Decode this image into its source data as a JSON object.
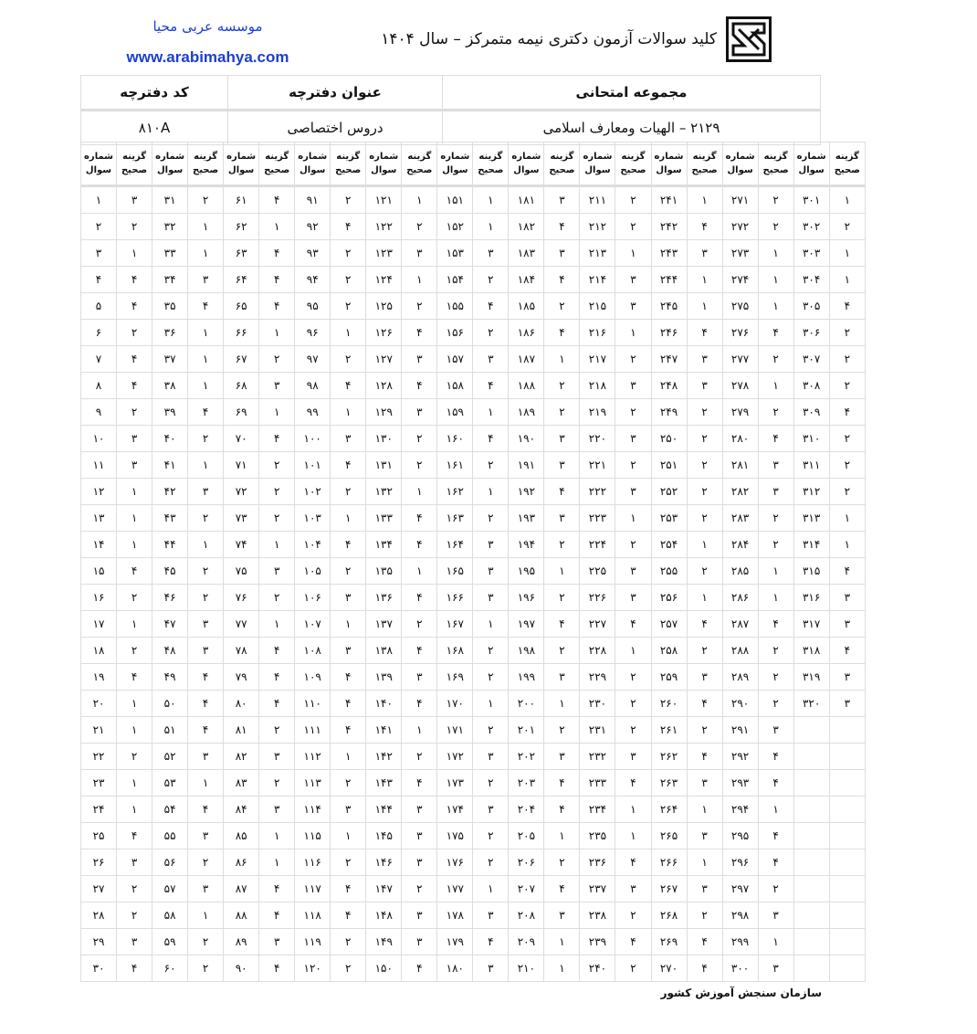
{
  "header": {
    "title": "کلید سوالات آزمون دکتری نیمه متمرکز – سال ۱۴۰۴",
    "institute": "موسسه عربی محیا",
    "website": "www.arabimahya.com",
    "logo_icon": "sanjesh-logo"
  },
  "info": {
    "headers": [
      "مجموعه امتحانی",
      "عنوان دفترچه",
      "کد دفترچه"
    ],
    "values": [
      "۲۱۲۹ – الهیات ومعارف اسلامی",
      "دروس اختصاصی",
      "۸۱۰A"
    ]
  },
  "key": {
    "col_question": "شماره سوال",
    "col_answer": "گزینه صحیح",
    "groups": [
      {
        "questions": [
          "۱",
          "۲",
          "۳",
          "۴",
          "۵",
          "۶",
          "۷",
          "۸",
          "۹",
          "۱۰",
          "۱۱",
          "۱۲",
          "۱۳",
          "۱۴",
          "۱۵",
          "۱۶",
          "۱۷",
          "۱۸",
          "۱۹",
          "۲۰",
          "۲۱",
          "۲۲",
          "۲۳",
          "۲۴",
          "۲۵",
          "۲۶",
          "۲۷",
          "۲۸",
          "۲۹",
          "۳۰"
        ],
        "answers": [
          "۳",
          "۲",
          "۱",
          "۴",
          "۴",
          "۲",
          "۴",
          "۴",
          "۲",
          "۳",
          "۳",
          "۱",
          "۱",
          "۱",
          "۴",
          "۲",
          "۱",
          "۲",
          "۴",
          "۱",
          "۱",
          "۲",
          "۱",
          "۱",
          "۴",
          "۳",
          "۲",
          "۲",
          "۳",
          "۴"
        ]
      },
      {
        "questions": [
          "۳۱",
          "۳۲",
          "۳۳",
          "۳۴",
          "۳۵",
          "۳۶",
          "۳۷",
          "۳۸",
          "۳۹",
          "۴۰",
          "۴۱",
          "۴۲",
          "۴۳",
          "۴۴",
          "۴۵",
          "۴۶",
          "۴۷",
          "۴۸",
          "۴۹",
          "۵۰",
          "۵۱",
          "۵۲",
          "۵۳",
          "۵۴",
          "۵۵",
          "۵۶",
          "۵۷",
          "۵۸",
          "۵۹",
          "۶۰"
        ],
        "answers": [
          "۲",
          "۱",
          "۱",
          "۳",
          "۴",
          "۱",
          "۱",
          "۱",
          "۴",
          "۲",
          "۱",
          "۳",
          "۲",
          "۱",
          "۲",
          "۲",
          "۳",
          "۳",
          "۴",
          "۴",
          "۴",
          "۳",
          "۱",
          "۴",
          "۳",
          "۲",
          "۳",
          "۱",
          "۲",
          "۲"
        ]
      },
      {
        "questions": [
          "۶۱",
          "۶۲",
          "۶۳",
          "۶۴",
          "۶۵",
          "۶۶",
          "۶۷",
          "۶۸",
          "۶۹",
          "۷۰",
          "۷۱",
          "۷۲",
          "۷۳",
          "۷۴",
          "۷۵",
          "۷۶",
          "۷۷",
          "۷۸",
          "۷۹",
          "۸۰",
          "۸۱",
          "۸۲",
          "۸۳",
          "۸۴",
          "۸۵",
          "۸۶",
          "۸۷",
          "۸۸",
          "۸۹",
          "۹۰"
        ],
        "answers": [
          "۴",
          "۱",
          "۴",
          "۴",
          "۴",
          "۱",
          "۲",
          "۳",
          "۱",
          "۴",
          "۲",
          "۲",
          "۲",
          "۱",
          "۳",
          "۲",
          "۱",
          "۴",
          "۴",
          "۴",
          "۲",
          "۳",
          "۲",
          "۳",
          "۱",
          "۱",
          "۴",
          "۴",
          "۳",
          "۴"
        ]
      },
      {
        "questions": [
          "۹۱",
          "۹۲",
          "۹۳",
          "۹۴",
          "۹۵",
          "۹۶",
          "۹۷",
          "۹۸",
          "۹۹",
          "۱۰۰",
          "۱۰۱",
          "۱۰۲",
          "۱۰۳",
          "۱۰۴",
          "۱۰۵",
          "۱۰۶",
          "۱۰۷",
          "۱۰۸",
          "۱۰۹",
          "۱۱۰",
          "۱۱۱",
          "۱۱۲",
          "۱۱۳",
          "۱۱۴",
          "۱۱۵",
          "۱۱۶",
          "۱۱۷",
          "۱۱۸",
          "۱۱۹",
          "۱۲۰"
        ],
        "answers": [
          "۲",
          "۴",
          "۲",
          "۲",
          "۲",
          "۱",
          "۲",
          "۴",
          "۱",
          "۳",
          "۴",
          "۲",
          "۱",
          "۴",
          "۲",
          "۳",
          "۱",
          "۳",
          "۴",
          "۴",
          "۴",
          "۱",
          "۲",
          "۳",
          "۱",
          "۲",
          "۴",
          "۴",
          "۲",
          "۲"
        ]
      },
      {
        "questions": [
          "۱۲۱",
          "۱۲۲",
          "۱۲۳",
          "۱۲۴",
          "۱۲۵",
          "۱۲۶",
          "۱۲۷",
          "۱۲۸",
          "۱۲۹",
          "۱۳۰",
          "۱۳۱",
          "۱۳۲",
          "۱۳۳",
          "۱۳۴",
          "۱۳۵",
          "۱۳۶",
          "۱۳۷",
          "۱۳۸",
          "۱۳۹",
          "۱۴۰",
          "۱۴۱",
          "۱۴۲",
          "۱۴۳",
          "۱۴۴",
          "۱۴۵",
          "۱۴۶",
          "۱۴۷",
          "۱۴۸",
          "۱۴۹",
          "۱۵۰"
        ],
        "answers": [
          "۱",
          "۲",
          "۳",
          "۱",
          "۲",
          "۴",
          "۳",
          "۴",
          "۳",
          "۲",
          "۲",
          "۱",
          "۴",
          "۴",
          "۱",
          "۴",
          "۲",
          "۴",
          "۳",
          "۴",
          "۱",
          "۲",
          "۴",
          "۳",
          "۳",
          "۳",
          "۲",
          "۳",
          "۳",
          "۴"
        ]
      },
      {
        "questions": [
          "۱۵۱",
          "۱۵۲",
          "۱۵۳",
          "۱۵۴",
          "۱۵۵",
          "۱۵۶",
          "۱۵۷",
          "۱۵۸",
          "۱۵۹",
          "۱۶۰",
          "۱۶۱",
          "۱۶۲",
          "۱۶۳",
          "۱۶۴",
          "۱۶۵",
          "۱۶۶",
          "۱۶۷",
          "۱۶۸",
          "۱۶۹",
          "۱۷۰",
          "۱۷۱",
          "۱۷۲",
          "۱۷۳",
          "۱۷۴",
          "۱۷۵",
          "۱۷۶",
          "۱۷۷",
          "۱۷۸",
          "۱۷۹",
          "۱۸۰"
        ],
        "answers": [
          "۱",
          "۱",
          "۳",
          "۲",
          "۴",
          "۲",
          "۳",
          "۴",
          "۱",
          "۴",
          "۲",
          "۱",
          "۲",
          "۳",
          "۳",
          "۳",
          "۱",
          "۲",
          "۲",
          "۱",
          "۲",
          "۳",
          "۲",
          "۳",
          "۲",
          "۲",
          "۱",
          "۳",
          "۴",
          "۳"
        ]
      },
      {
        "questions": [
          "۱۸۱",
          "۱۸۲",
          "۱۸۳",
          "۱۸۴",
          "۱۸۵",
          "۱۸۶",
          "۱۸۷",
          "۱۸۸",
          "۱۸۹",
          "۱۹۰",
          "۱۹۱",
          "۱۹۲",
          "۱۹۳",
          "۱۹۴",
          "۱۹۵",
          "۱۹۶",
          "۱۹۷",
          "۱۹۸",
          "۱۹۹",
          "۲۰۰",
          "۲۰۱",
          "۲۰۲",
          "۲۰۳",
          "۲۰۴",
          "۲۰۵",
          "۲۰۶",
          "۲۰۷",
          "۲۰۸",
          "۲۰۹",
          "۲۱۰"
        ],
        "answers": [
          "۳",
          "۴",
          "۳",
          "۴",
          "۲",
          "۴",
          "۱",
          "۲",
          "۲",
          "۳",
          "۳",
          "۴",
          "۳",
          "۲",
          "۱",
          "۲",
          "۴",
          "۲",
          "۳",
          "۱",
          "۲",
          "۳",
          "۴",
          "۴",
          "۱",
          "۲",
          "۴",
          "۳",
          "۱",
          "۱"
        ]
      },
      {
        "questions": [
          "۲۱۱",
          "۲۱۲",
          "۲۱۳",
          "۲۱۴",
          "۲۱۵",
          "۲۱۶",
          "۲۱۷",
          "۲۱۸",
          "۲۱۹",
          "۲۲۰",
          "۲۲۱",
          "۲۲۲",
          "۲۲۳",
          "۲۲۴",
          "۲۲۵",
          "۲۲۶",
          "۲۲۷",
          "۲۲۸",
          "۲۲۹",
          "۲۳۰",
          "۲۳۱",
          "۲۳۲",
          "۲۳۳",
          "۲۳۴",
          "۲۳۵",
          "۲۳۶",
          "۲۳۷",
          "۲۳۸",
          "۲۳۹",
          "۲۴۰"
        ],
        "answers": [
          "۲",
          "۲",
          "۱",
          "۳",
          "۳",
          "۱",
          "۲",
          "۳",
          "۲",
          "۳",
          "۲",
          "۳",
          "۱",
          "۲",
          "۳",
          "۳",
          "۴",
          "۱",
          "۲",
          "۲",
          "۲",
          "۳",
          "۴",
          "۱",
          "۱",
          "۴",
          "۳",
          "۲",
          "۴",
          "۲"
        ]
      },
      {
        "questions": [
          "۲۴۱",
          "۲۴۲",
          "۲۴۳",
          "۲۴۴",
          "۲۴۵",
          "۲۴۶",
          "۲۴۷",
          "۲۴۸",
          "۲۴۹",
          "۲۵۰",
          "۲۵۱",
          "۲۵۲",
          "۲۵۳",
          "۲۵۴",
          "۲۵۵",
          "۲۵۶",
          "۲۵۷",
          "۲۵۸",
          "۲۵۹",
          "۲۶۰",
          "۲۶۱",
          "۲۶۲",
          "۲۶۳",
          "۲۶۴",
          "۲۶۵",
          "۲۶۶",
          "۲۶۷",
          "۲۶۸",
          "۲۶۹",
          "۲۷۰"
        ],
        "answers": [
          "۱",
          "۴",
          "۳",
          "۱",
          "۱",
          "۴",
          "۳",
          "۳",
          "۲",
          "۲",
          "۲",
          "۲",
          "۲",
          "۱",
          "۲",
          "۱",
          "۴",
          "۲",
          "۳",
          "۴",
          "۲",
          "۴",
          "۳",
          "۱",
          "۳",
          "۱",
          "۳",
          "۲",
          "۴",
          "۴"
        ]
      },
      {
        "questions": [
          "۲۷۱",
          "۲۷۲",
          "۲۷۳",
          "۲۷۴",
          "۲۷۵",
          "۲۷۶",
          "۲۷۷",
          "۲۷۸",
          "۲۷۹",
          "۲۸۰",
          "۲۸۱",
          "۲۸۲",
          "۲۸۳",
          "۲۸۴",
          "۲۸۵",
          "۲۸۶",
          "۲۸۷",
          "۲۸۸",
          "۲۸۹",
          "۲۹۰",
          "۲۹۱",
          "۲۹۲",
          "۲۹۳",
          "۲۹۴",
          "۲۹۵",
          "۲۹۶",
          "۲۹۷",
          "۲۹۸",
          "۲۹۹",
          "۳۰۰"
        ],
        "answers": [
          "۲",
          "۲",
          "۱",
          "۱",
          "۱",
          "۴",
          "۲",
          "۱",
          "۲",
          "۴",
          "۳",
          "۳",
          "۲",
          "۲",
          "۱",
          "۱",
          "۴",
          "۲",
          "۲",
          "۲",
          "۳",
          "۴",
          "۴",
          "۱",
          "۴",
          "۴",
          "۲",
          "۳",
          "۱",
          "۳"
        ]
      },
      {
        "questions": [
          "۳۰۱",
          "۳۰۲",
          "۳۰۳",
          "۳۰۴",
          "۳۰۵",
          "۳۰۶",
          "۳۰۷",
          "۳۰۸",
          "۳۰۹",
          "۳۱۰",
          "۳۱۱",
          "۳۱۲",
          "۳۱۳",
          "۳۱۴",
          "۳۱۵",
          "۳۱۶",
          "۳۱۷",
          "۳۱۸",
          "۳۱۹",
          "۳۲۰"
        ],
        "answers": [
          "۱",
          "۲",
          "۱",
          "۱",
          "۴",
          "۲",
          "۲",
          "۲",
          "۴",
          "۲",
          "۲",
          "۲",
          "۱",
          "۱",
          "۴",
          "۳",
          "۳",
          "۴",
          "۳",
          "۳"
        ]
      }
    ]
  },
  "footer": "سازمان سنجش آموزش کشور",
  "colors": {
    "brand_blue": "#1b3fd0",
    "grid": "#dddddd"
  }
}
